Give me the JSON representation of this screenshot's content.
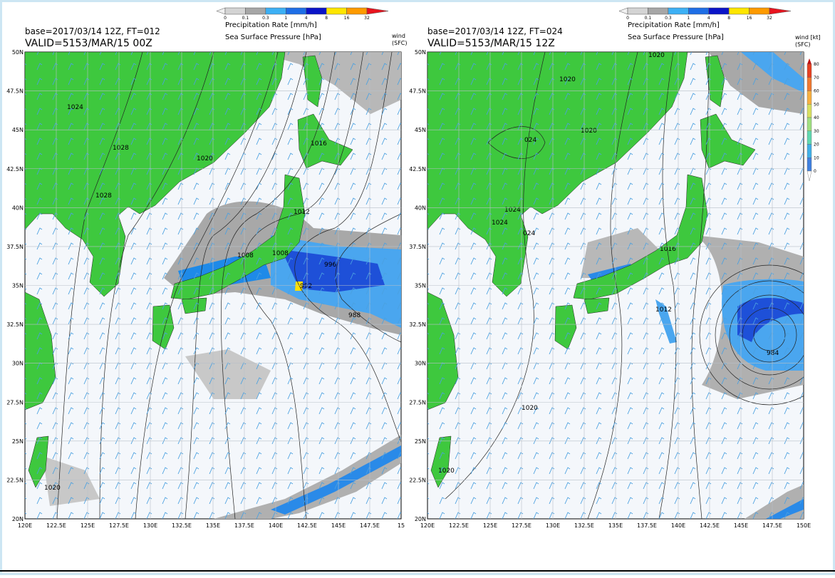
{
  "panels": [
    {
      "colorbar": {
        "labels": [
          "0",
          "0.1",
          "0.3",
          "1",
          "4",
          "8",
          "16",
          "32"
        ]
      },
      "precip_title": "Precipitation Rate [mm/h]",
      "pressure_title": "Sea Surface Pressure [hPa]",
      "base": "base=2017/03/14 12Z, FT=012",
      "valid": "VALID=5153/MAR/15 00Z",
      "wind_label": [
        "wind",
        "(SFC)"
      ],
      "lat_labels": [
        "50N",
        "47.5N",
        "45N",
        "42.5N",
        "40N",
        "37.5N",
        "35N",
        "32.5N",
        "30N",
        "27.5N",
        "25N",
        "22.5N",
        "20N"
      ],
      "lon_labels": [
        "120E",
        "122.5E",
        "125E",
        "127.5E",
        "130E",
        "132.5E",
        "135E",
        "137.5E",
        "140E",
        "142.5E",
        "145E",
        "147.5E",
        "15"
      ],
      "contour_labels": [
        "1024",
        "1028",
        "1028",
        "1020",
        "1016",
        "1012",
        "1008",
        "1008",
        "996",
        "992",
        "988",
        "1020"
      ]
    },
    {
      "colorbar": {
        "labels": [
          "0",
          "0.1",
          "0.3",
          "1",
          "4",
          "8",
          "16",
          "32"
        ]
      },
      "precip_title": "Precipitation Rate [mm/h]",
      "pressure_title": "Sea Surface Pressure [hPa]",
      "base": "base=2017/03/14 12Z, FT=024",
      "valid": "VALID=5153/MAR/15 12Z",
      "wind_label": [
        "wind [kt]",
        "(SFC)"
      ],
      "wind_colorbar": {
        "labels": [
          "80",
          "70",
          "60",
          "50",
          "40",
          "30",
          "20",
          "10",
          "0"
        ]
      },
      "lat_labels": [
        "50N",
        "47.5N",
        "45N",
        "42.5N",
        "40N",
        "37.5N",
        "35N",
        "32.5N",
        "30N",
        "27.5N",
        "25N",
        "22.5N",
        "20N"
      ],
      "lon_labels": [
        "120E",
        "122.5E",
        "125E",
        "127.5E",
        "130E",
        "132.5E",
        "135E",
        "137.5E",
        "140E",
        "142.5E",
        "145E",
        "147.5E",
        "150E"
      ],
      "contour_labels": [
        "1020",
        "1020",
        "1020",
        "024",
        "1024",
        "1024",
        "024",
        "1016",
        "1012",
        "984",
        "1020",
        "1020"
      ]
    }
  ]
}
